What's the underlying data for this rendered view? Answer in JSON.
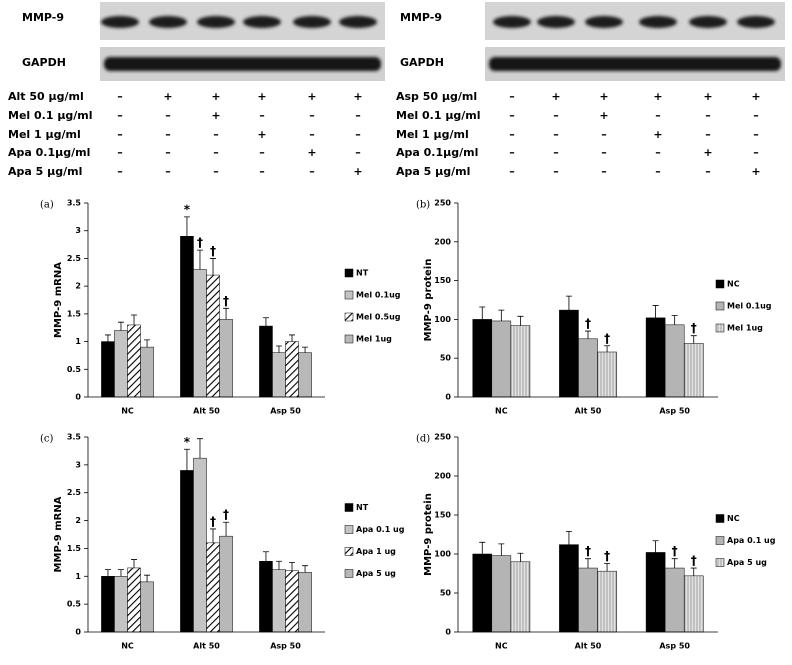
{
  "blots": [
    {
      "labels": [
        "MMP-9",
        "GAPDH"
      ],
      "treatments": [
        {
          "name": "Alt 50 μg/ml",
          "signs": [
            "–",
            "+",
            "+",
            "+",
            "+",
            "+"
          ]
        },
        {
          "name": "Mel 0.1 μg/ml",
          "signs": [
            "–",
            "–",
            "+",
            "–",
            "–",
            "–"
          ]
        },
        {
          "name": "Mel 1 μg/ml",
          "signs": [
            "–",
            "–",
            "–",
            "+",
            "–",
            "–"
          ]
        },
        {
          "name": "Apa 0.1μg/ml",
          "signs": [
            "–",
            "–",
            "–",
            "–",
            "+",
            "–"
          ]
        },
        {
          "name": "Apa 5 μg/ml",
          "signs": [
            "–",
            "–",
            "–",
            "–",
            "–",
            "+"
          ]
        }
      ]
    },
    {
      "labels": [
        "MMP-9",
        "GAPDH"
      ],
      "treatments": [
        {
          "name": "Asp 50 μg/ml",
          "signs": [
            "–",
            "+",
            "+",
            "+",
            "+",
            "+"
          ]
        },
        {
          "name": "Mel 0.1 μg/ml",
          "signs": [
            "–",
            "–",
            "+",
            "–",
            "–",
            "–"
          ]
        },
        {
          "name": "Mel 1 μg/ml",
          "signs": [
            "–",
            "–",
            "–",
            "+",
            "–",
            "–"
          ]
        },
        {
          "name": "Apa 0.1μg/ml",
          "signs": [
            "–",
            "–",
            "–",
            "–",
            "+",
            "–"
          ]
        },
        {
          "name": "Apa 5 μg/ml",
          "signs": [
            "–",
            "–",
            "–",
            "–",
            "–",
            "+"
          ]
        }
      ]
    }
  ],
  "chart_data": [
    {
      "type": "bar",
      "label": "(a)",
      "ylabel": "MMP-9 mRNA",
      "categories": [
        "NC",
        "Alt 50",
        "Asp 50"
      ],
      "series": [
        {
          "name": "NT",
          "color": "#000000",
          "pattern": null,
          "values": [
            1.0,
            2.9,
            1.28
          ],
          "errors": [
            0.12,
            0.35,
            0.15
          ]
        },
        {
          "name": "Mel 0.1ug",
          "color": "#c4c4c4",
          "pattern": null,
          "values": [
            1.2,
            2.3,
            0.8
          ],
          "errors": [
            0.15,
            0.35,
            0.12
          ]
        },
        {
          "name": "Mel 0.5ug",
          "color": "#000000",
          "pattern": "diagonal",
          "values": [
            1.3,
            2.2,
            1.0
          ],
          "errors": [
            0.18,
            0.3,
            0.12
          ]
        },
        {
          "name": "Mel 1ug",
          "color": "#b8b8b8",
          "pattern": null,
          "values": [
            0.9,
            1.4,
            0.8
          ],
          "errors": [
            0.13,
            0.2,
            0.1
          ]
        }
      ],
      "ylim": [
        0,
        3.5
      ],
      "yticks": [
        0,
        0.5,
        1,
        1.5,
        2,
        2.5,
        3,
        3.5
      ],
      "legend": "right",
      "annotations": [
        {
          "text": "*",
          "series": 0,
          "category": 1
        },
        {
          "text": "†",
          "series": 1,
          "category": 1
        },
        {
          "text": "†",
          "series": 2,
          "category": 1
        },
        {
          "text": "†",
          "series": 3,
          "category": 1
        }
      ]
    },
    {
      "type": "bar",
      "label": "(b)",
      "ylabel": "MMP-9 protein",
      "categories": [
        "NC",
        "Alt 50",
        "Asp 50"
      ],
      "series": [
        {
          "name": "NC",
          "color": "#000000",
          "pattern": null,
          "values": [
            100,
            112,
            102
          ],
          "errors": [
            16,
            18,
            16
          ]
        },
        {
          "name": "Mel 0.1ug",
          "color": "#b4b4b4",
          "pattern": null,
          "values": [
            98,
            75,
            93
          ],
          "errors": [
            14,
            10,
            12
          ]
        },
        {
          "name": "Mel 1ug",
          "color": "#d8d8d8",
          "pattern": "vertical",
          "values": [
            92,
            58,
            69
          ],
          "errors": [
            12,
            8,
            10
          ]
        }
      ],
      "ylim": [
        0,
        250
      ],
      "yticks": [
        0,
        50,
        100,
        150,
        200,
        250
      ],
      "legend": "right",
      "annotations": [
        {
          "text": "†",
          "series": 1,
          "category": 1
        },
        {
          "text": "†",
          "series": 2,
          "category": 1
        },
        {
          "text": "†",
          "series": 2,
          "category": 2
        }
      ]
    },
    {
      "type": "bar",
      "label": "(c)",
      "ylabel": "MMP-9 mRNA",
      "categories": [
        "NC",
        "Alt 50",
        "Asp 50"
      ],
      "series": [
        {
          "name": "NT",
          "color": "#000000",
          "pattern": null,
          "values": [
            1.0,
            2.9,
            1.27
          ],
          "errors": [
            0.12,
            0.38,
            0.17
          ]
        },
        {
          "name": "Apa 0.1 ug",
          "color": "#c4c4c4",
          "pattern": null,
          "values": [
            1.0,
            3.12,
            1.12
          ],
          "errors": [
            0.12,
            0.35,
            0.15
          ]
        },
        {
          "name": "Apa 1 ug",
          "color": "#000000",
          "pattern": "diagonal",
          "values": [
            1.15,
            1.6,
            1.1
          ],
          "errors": [
            0.15,
            0.25,
            0.15
          ]
        },
        {
          "name": "Apa 5 ug",
          "color": "#b8b8b8",
          "pattern": null,
          "values": [
            0.9,
            1.72,
            1.07
          ],
          "errors": [
            0.12,
            0.25,
            0.12
          ]
        }
      ],
      "ylim": [
        0,
        3.5
      ],
      "yticks": [
        0,
        0.5,
        1,
        1.5,
        2,
        2.5,
        3,
        3.5
      ],
      "legend": "right",
      "annotations": [
        {
          "text": "*",
          "series": 0,
          "category": 1
        },
        {
          "text": "†",
          "series": 2,
          "category": 1
        },
        {
          "text": "†",
          "series": 3,
          "category": 1
        }
      ]
    },
    {
      "type": "bar",
      "label": "(d)",
      "ylabel": "MMP-9 protein",
      "categories": [
        "NC",
        "Alt 50",
        "Asp 50"
      ],
      "series": [
        {
          "name": "NC",
          "color": "#000000",
          "pattern": null,
          "values": [
            100,
            112,
            102
          ],
          "errors": [
            15,
            17,
            15
          ]
        },
        {
          "name": "Apa 0.1 ug",
          "color": "#b4b4b4",
          "pattern": null,
          "values": [
            98,
            82,
            82
          ],
          "errors": [
            15,
            12,
            12
          ]
        },
        {
          "name": "Apa 5 ug",
          "color": "#d8d8d8",
          "pattern": "vertical",
          "values": [
            90,
            78,
            72
          ],
          "errors": [
            11,
            10,
            10
          ]
        }
      ],
      "ylim": [
        0,
        250
      ],
      "yticks": [
        0,
        50,
        100,
        150,
        200,
        250
      ],
      "legend": "right",
      "annotations": [
        {
          "text": "†",
          "series": 1,
          "category": 1
        },
        {
          "text": "†",
          "series": 2,
          "category": 1
        },
        {
          "text": "†",
          "series": 1,
          "category": 2
        },
        {
          "text": "†",
          "series": 2,
          "category": 2
        }
      ]
    }
  ]
}
